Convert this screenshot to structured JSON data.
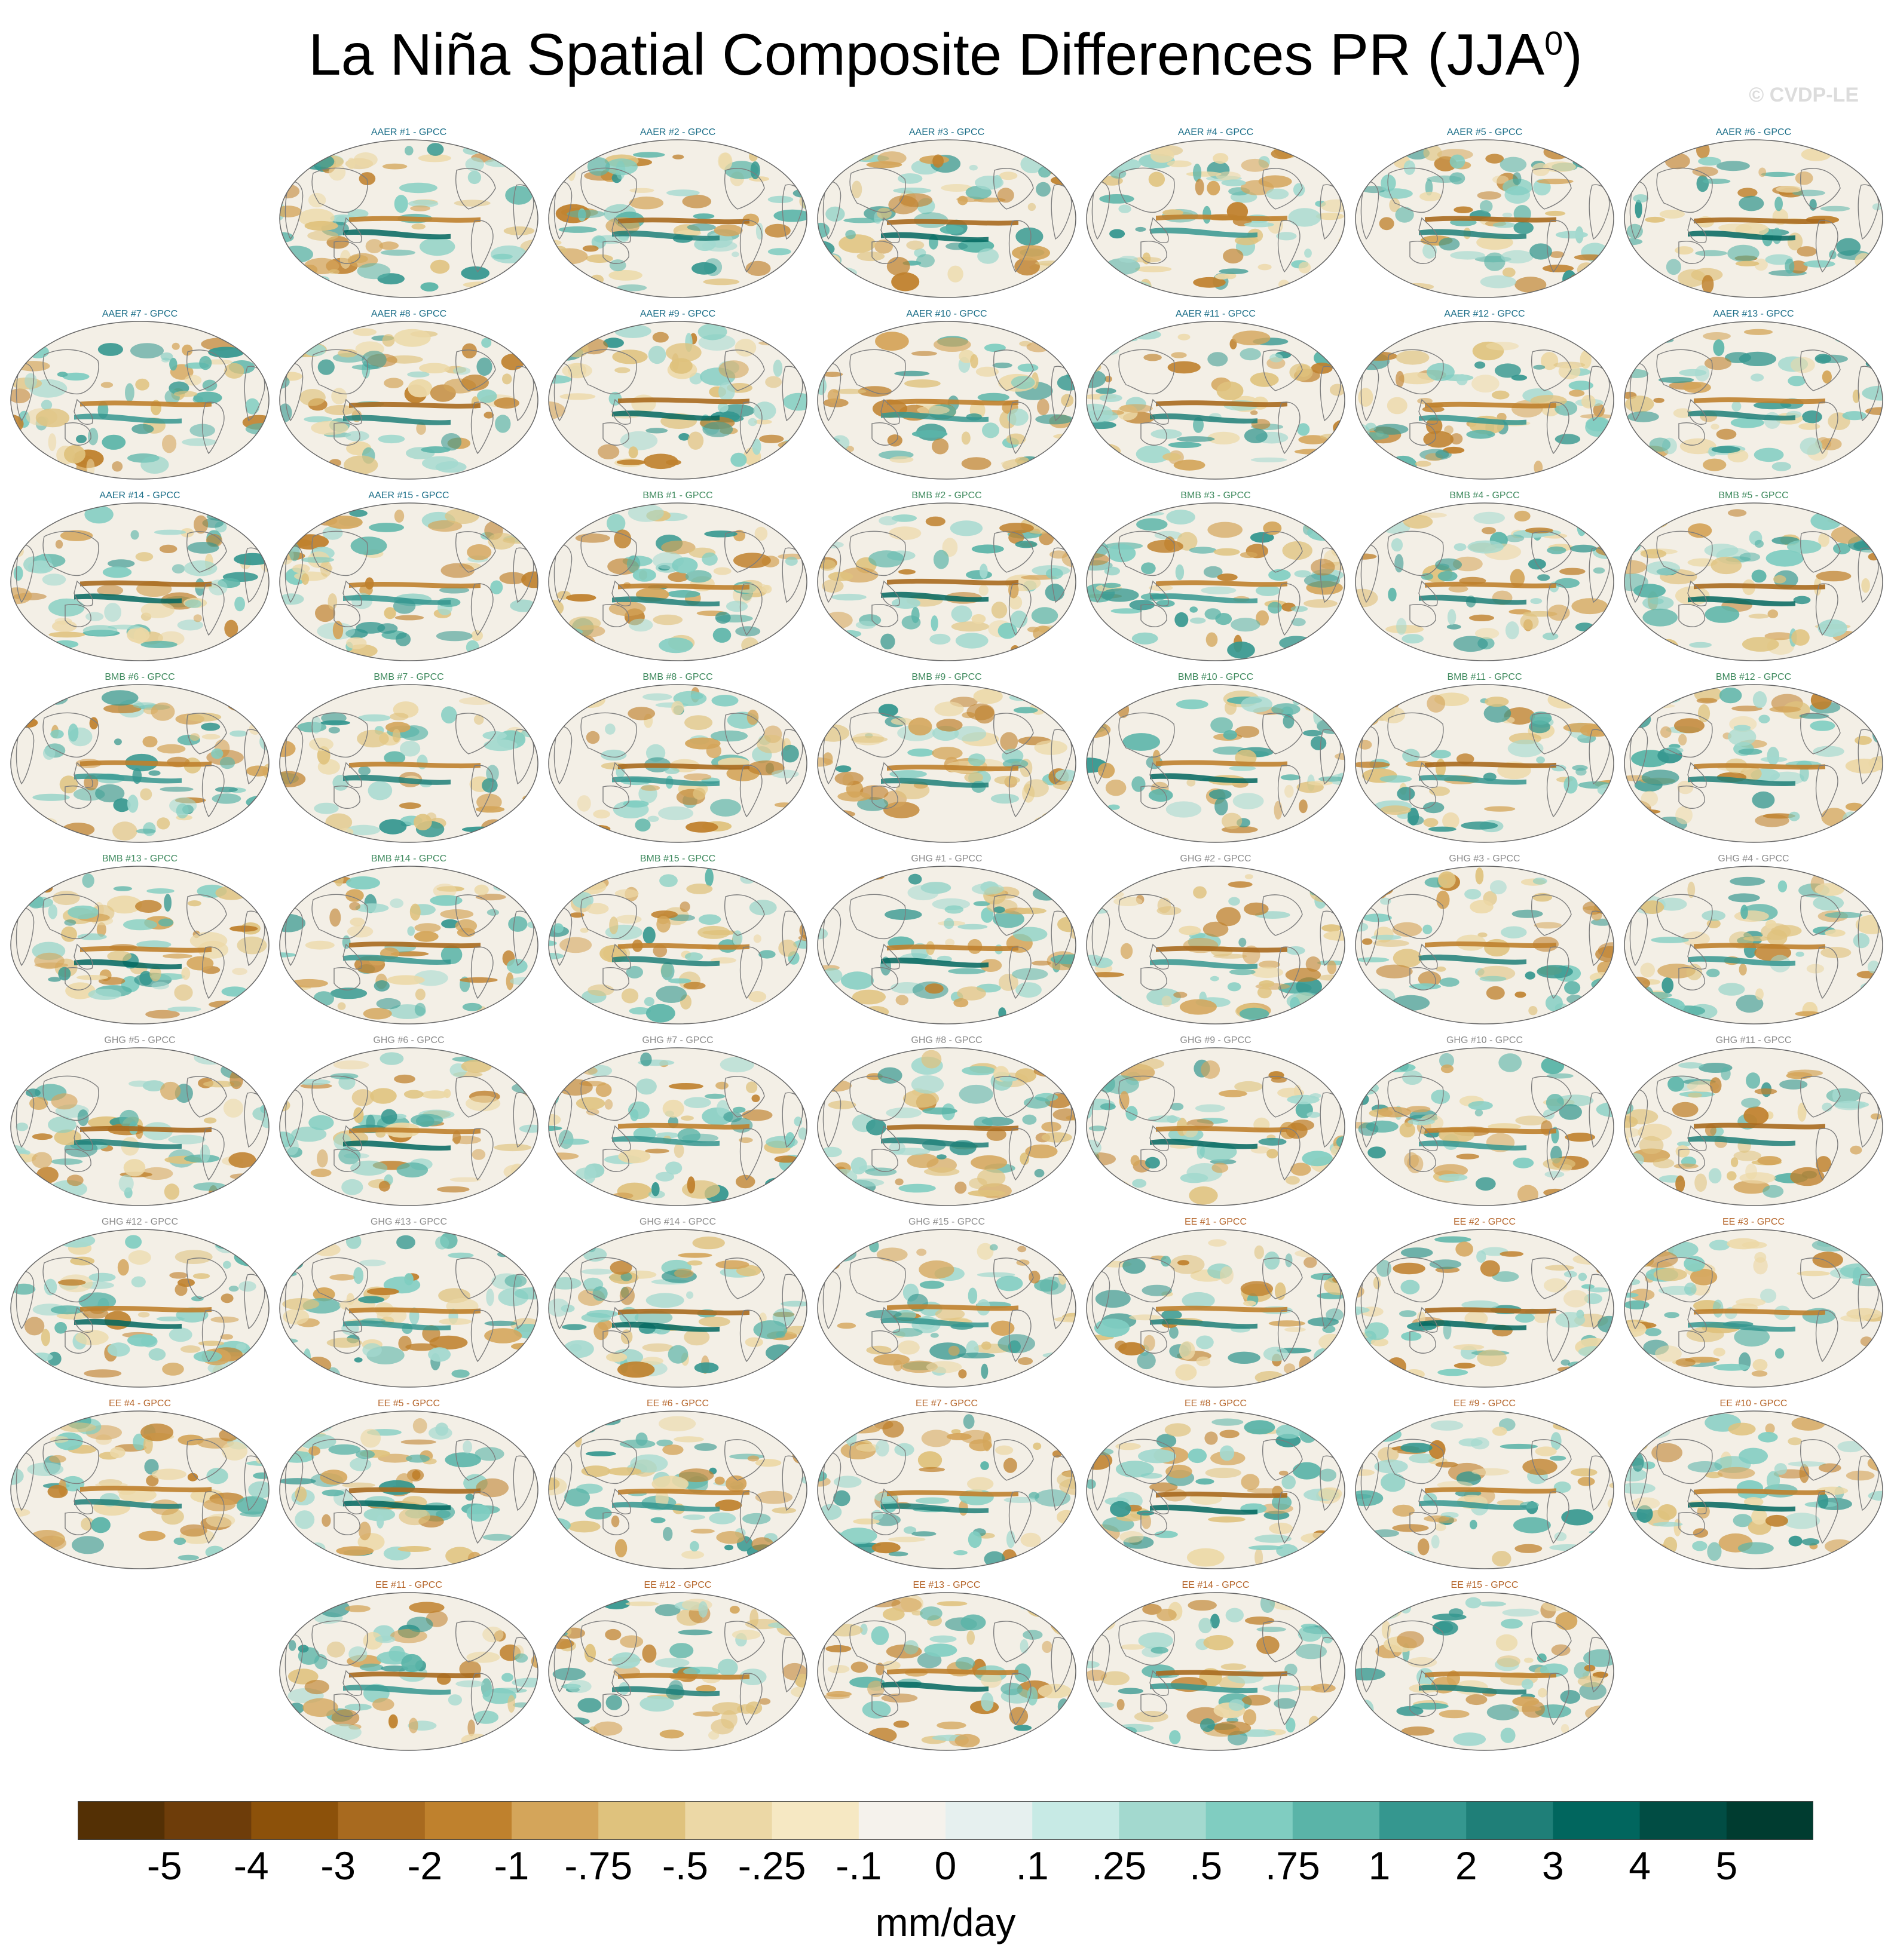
{
  "title": {
    "main": "La Niña Spatial Composite Differences PR (JJA",
    "superscript": "0",
    "close": ")"
  },
  "watermark": "© CVDP-LE",
  "colors": {
    "aer": "#1b6e88",
    "bmb": "#3f8a5e",
    "ghg": "#8c8c8c",
    "ee": "#b5652a",
    "ocean": "#f3efe6",
    "coast": "#7d7d7d"
  },
  "chart_data": {
    "type": "heatmap",
    "projection": "robinson-like global maps, Pacific-centered",
    "grid_rows": [
      [
        "AAER #1 - GPCC",
        "AAER #2 - GPCC",
        "AAER #3 - GPCC",
        "AAER #4 - GPCC",
        "AAER #5 - GPCC",
        "AAER #6 - GPCC"
      ],
      [
        "AAER #7 - GPCC",
        "AAER #8 - GPCC",
        "AAER #9 - GPCC",
        "AAER #10 - GPCC",
        "AAER #11 - GPCC",
        "AAER #12 - GPCC",
        "AAER #13 - GPCC"
      ],
      [
        "AAER #14 - GPCC",
        "AAER #15 - GPCC",
        "BMB #1 - GPCC",
        "BMB #2 - GPCC",
        "BMB #3 - GPCC",
        "BMB #4 - GPCC",
        "BMB #5 - GPCC"
      ],
      [
        "BMB #6 - GPCC",
        "BMB #7 - GPCC",
        "BMB #8 - GPCC",
        "BMB #9 - GPCC",
        "BMB #10 - GPCC",
        "BMB #11 - GPCC",
        "BMB #12 - GPCC"
      ],
      [
        "BMB #13 - GPCC",
        "BMB #14 - GPCC",
        "BMB #15 - GPCC",
        "GHG #1 - GPCC",
        "GHG #2 - GPCC",
        "GHG #3 - GPCC",
        "GHG #4 - GPCC"
      ],
      [
        "GHG #5 - GPCC",
        "GHG #6 - GPCC",
        "GHG #7 - GPCC",
        "GHG #8 - GPCC",
        "GHG #9 - GPCC",
        "GHG #10 - GPCC",
        "GHG #11 - GPCC"
      ],
      [
        "GHG #12 - GPCC",
        "GHG #13 - GPCC",
        "GHG #14 - GPCC",
        "GHG #15 - GPCC",
        "EE #1 - GPCC",
        "EE #2 - GPCC",
        "EE #3 - GPCC"
      ],
      [
        "EE #4 - GPCC",
        "EE #5 - GPCC",
        "EE #6 - GPCC",
        "EE #7 - GPCC",
        "EE #8 - GPCC",
        "EE #9 - GPCC",
        "EE #10 - GPCC"
      ],
      [
        "EE #11 - GPCC",
        "EE #12 - GPCC",
        "EE #13 - GPCC",
        "EE #14 - GPCC",
        "EE #15 - GPCC"
      ]
    ],
    "colorbar": {
      "levels": [
        "-5",
        "-4",
        "-3",
        "-2",
        "-1",
        "-.75",
        "-.5",
        "-.25",
        "-.1",
        "0",
        ".1",
        ".25",
        ".5",
        ".75",
        "1",
        "2",
        "3",
        "4",
        "5"
      ],
      "colors": [
        "#543005",
        "#6e3d0a",
        "#8c510a",
        "#a86a1f",
        "#bf812d",
        "#d4a55a",
        "#dfc27d",
        "#ecd8a6",
        "#f6e8c3",
        "#f5f2ec",
        "#e6f0ef",
        "#c7eae5",
        "#a3d9cf",
        "#80cdc1",
        "#5ab4a8",
        "#35978f",
        "#1f7f78",
        "#01665e",
        "#014d44",
        "#003c30"
      ],
      "units": "mm/day"
    }
  }
}
